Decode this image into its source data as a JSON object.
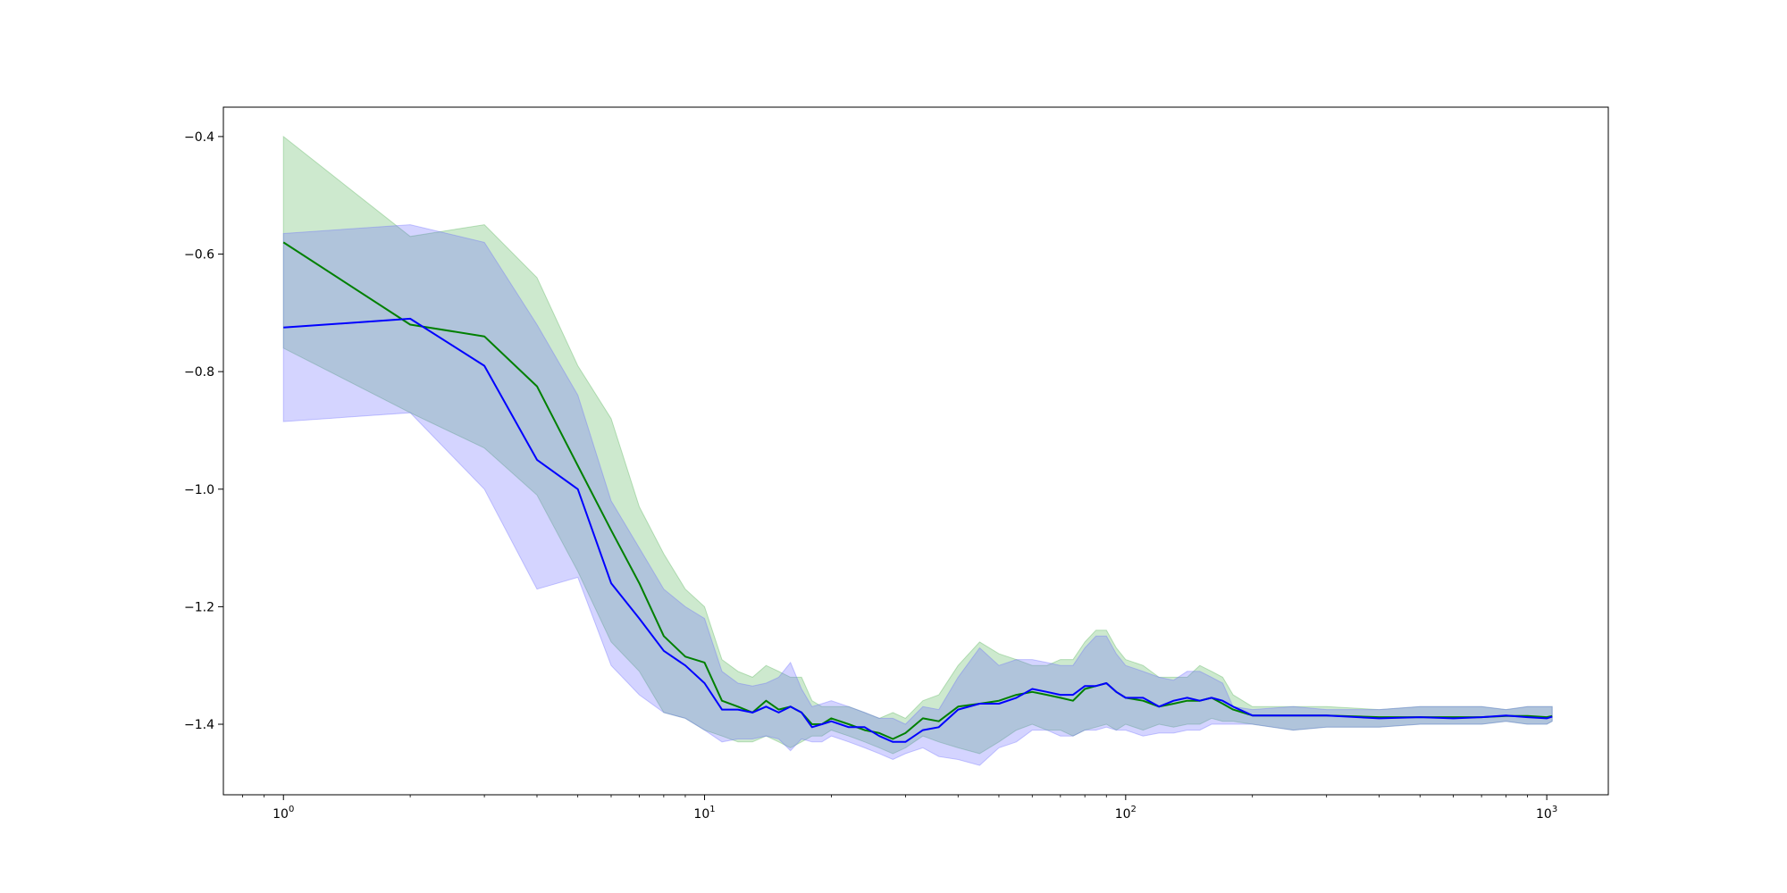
{
  "chart_data": {
    "type": "line",
    "title": "",
    "xlabel": "",
    "ylabel": "",
    "xscale": "log",
    "grid": false,
    "legend": "none",
    "xlim": [
      0.72,
      1400
    ],
    "ylim": [
      -1.52,
      -0.35
    ],
    "x_ticks": [
      {
        "label_base": "10",
        "label_exp": "0",
        "value": 1
      },
      {
        "label_base": "10",
        "label_exp": "1",
        "value": 10
      },
      {
        "label_base": "10",
        "label_exp": "2",
        "value": 100
      },
      {
        "label_base": "10",
        "label_exp": "3",
        "value": 1000
      }
    ],
    "y_ticks": [
      {
        "label": "−0.4",
        "value": -0.4
      },
      {
        "label": "−0.6",
        "value": -0.6
      },
      {
        "label": "−0.8",
        "value": -0.8
      },
      {
        "label": "−1.0",
        "value": -1.0
      },
      {
        "label": "−1.2",
        "value": -1.2
      },
      {
        "label": "−1.4",
        "value": -1.4
      }
    ],
    "series": [
      {
        "color": "#008000",
        "band_color": "#4caf50",
        "x": [
          1,
          2,
          3,
          4,
          5,
          6,
          7,
          8,
          9,
          10,
          11,
          12,
          13,
          14,
          15,
          16,
          17,
          18,
          19,
          20,
          22,
          24,
          26,
          28,
          30,
          33,
          36,
          40,
          45,
          50,
          55,
          60,
          65,
          70,
          75,
          80,
          85,
          90,
          95,
          100,
          110,
          120,
          130,
          140,
          150,
          160,
          170,
          180,
          200,
          250,
          300,
          400,
          500,
          600,
          700,
          800,
          900,
          1000,
          1030
        ],
        "mean": [
          -0.58,
          -0.72,
          -0.74,
          -0.825,
          -0.96,
          -1.07,
          -1.16,
          -1.25,
          -1.285,
          -1.295,
          -1.36,
          -1.37,
          -1.38,
          -1.36,
          -1.375,
          -1.37,
          -1.38,
          -1.4,
          -1.4,
          -1.39,
          -1.4,
          -1.41,
          -1.415,
          -1.425,
          -1.415,
          -1.39,
          -1.395,
          -1.37,
          -1.365,
          -1.36,
          -1.35,
          -1.345,
          -1.35,
          -1.355,
          -1.36,
          -1.34,
          -1.335,
          -1.33,
          -1.345,
          -1.355,
          -1.36,
          -1.37,
          -1.365,
          -1.36,
          -1.36,
          -1.355,
          -1.365,
          -1.375,
          -1.385,
          -1.385,
          -1.385,
          -1.388,
          -1.388,
          -1.388,
          -1.388,
          -1.386,
          -1.386,
          -1.388,
          -1.386
        ],
        "lower": [
          -0.76,
          -0.87,
          -0.93,
          -1.01,
          -1.14,
          -1.26,
          -1.31,
          -1.38,
          -1.39,
          -1.41,
          -1.42,
          -1.43,
          -1.43,
          -1.42,
          -1.43,
          -1.44,
          -1.43,
          -1.42,
          -1.42,
          -1.41,
          -1.42,
          -1.43,
          -1.44,
          -1.45,
          -1.44,
          -1.42,
          -1.43,
          -1.44,
          -1.45,
          -1.43,
          -1.41,
          -1.4,
          -1.41,
          -1.41,
          -1.42,
          -1.41,
          -1.405,
          -1.4,
          -1.41,
          -1.4,
          -1.41,
          -1.4,
          -1.405,
          -1.4,
          -1.4,
          -1.39,
          -1.395,
          -1.395,
          -1.4,
          -1.41,
          -1.405,
          -1.405,
          -1.4,
          -1.4,
          -1.4,
          -1.395,
          -1.4,
          -1.4,
          -1.395
        ],
        "upper": [
          -0.4,
          -0.57,
          -0.55,
          -0.64,
          -0.79,
          -0.88,
          -1.03,
          -1.11,
          -1.17,
          -1.2,
          -1.29,
          -1.31,
          -1.32,
          -1.3,
          -1.31,
          -1.32,
          -1.32,
          -1.36,
          -1.37,
          -1.37,
          -1.37,
          -1.38,
          -1.39,
          -1.38,
          -1.39,
          -1.36,
          -1.35,
          -1.3,
          -1.26,
          -1.28,
          -1.29,
          -1.3,
          -1.3,
          -1.29,
          -1.29,
          -1.26,
          -1.24,
          -1.24,
          -1.27,
          -1.29,
          -1.3,
          -1.32,
          -1.32,
          -1.32,
          -1.3,
          -1.31,
          -1.32,
          -1.35,
          -1.37,
          -1.37,
          -1.37,
          -1.375,
          -1.37,
          -1.37,
          -1.37,
          -1.375,
          -1.37,
          -1.37,
          -1.37
        ]
      },
      {
        "color": "#0000ff",
        "band_color": "#6666ff",
        "x": [
          1,
          2,
          3,
          4,
          5,
          6,
          7,
          8,
          9,
          10,
          11,
          12,
          13,
          14,
          15,
          16,
          17,
          18,
          19,
          20,
          22,
          24,
          26,
          28,
          30,
          33,
          36,
          40,
          45,
          50,
          55,
          60,
          65,
          70,
          75,
          80,
          85,
          90,
          95,
          100,
          110,
          120,
          130,
          140,
          150,
          160,
          170,
          180,
          200,
          250,
          300,
          400,
          500,
          600,
          700,
          800,
          900,
          1000,
          1030
        ],
        "mean": [
          -0.725,
          -0.71,
          -0.79,
          -0.95,
          -1.0,
          -1.16,
          -1.22,
          -1.275,
          -1.3,
          -1.33,
          -1.375,
          -1.375,
          -1.38,
          -1.37,
          -1.38,
          -1.37,
          -1.38,
          -1.405,
          -1.4,
          -1.395,
          -1.405,
          -1.405,
          -1.42,
          -1.43,
          -1.43,
          -1.41,
          -1.405,
          -1.375,
          -1.365,
          -1.365,
          -1.355,
          -1.34,
          -1.345,
          -1.35,
          -1.35,
          -1.335,
          -1.335,
          -1.33,
          -1.345,
          -1.355,
          -1.355,
          -1.37,
          -1.36,
          -1.355,
          -1.36,
          -1.355,
          -1.36,
          -1.37,
          -1.385,
          -1.385,
          -1.385,
          -1.39,
          -1.388,
          -1.39,
          -1.388,
          -1.385,
          -1.388,
          -1.39,
          -1.387
        ],
        "lower": [
          -0.885,
          -0.87,
          -1.0,
          -1.17,
          -1.15,
          -1.3,
          -1.35,
          -1.38,
          -1.39,
          -1.41,
          -1.43,
          -1.425,
          -1.425,
          -1.42,
          -1.425,
          -1.445,
          -1.425,
          -1.43,
          -1.43,
          -1.42,
          -1.43,
          -1.44,
          -1.45,
          -1.46,
          -1.45,
          -1.44,
          -1.455,
          -1.46,
          -1.47,
          -1.44,
          -1.43,
          -1.41,
          -1.41,
          -1.42,
          -1.42,
          -1.41,
          -1.41,
          -1.405,
          -1.41,
          -1.41,
          -1.42,
          -1.415,
          -1.415,
          -1.41,
          -1.41,
          -1.4,
          -1.4,
          -1.4,
          -1.4,
          -1.41,
          -1.405,
          -1.405,
          -1.4,
          -1.4,
          -1.4,
          -1.395,
          -1.4,
          -1.4,
          -1.395
        ],
        "upper": [
          -0.565,
          -0.55,
          -0.58,
          -0.72,
          -0.84,
          -1.02,
          -1.1,
          -1.17,
          -1.2,
          -1.22,
          -1.31,
          -1.33,
          -1.335,
          -1.33,
          -1.32,
          -1.295,
          -1.34,
          -1.37,
          -1.365,
          -1.36,
          -1.37,
          -1.38,
          -1.39,
          -1.39,
          -1.4,
          -1.37,
          -1.375,
          -1.32,
          -1.27,
          -1.3,
          -1.29,
          -1.29,
          -1.295,
          -1.3,
          -1.3,
          -1.27,
          -1.25,
          -1.25,
          -1.28,
          -1.3,
          -1.31,
          -1.32,
          -1.325,
          -1.31,
          -1.31,
          -1.32,
          -1.33,
          -1.37,
          -1.375,
          -1.37,
          -1.375,
          -1.375,
          -1.37,
          -1.37,
          -1.37,
          -1.375,
          -1.37,
          -1.37,
          -1.37
        ]
      }
    ]
  }
}
